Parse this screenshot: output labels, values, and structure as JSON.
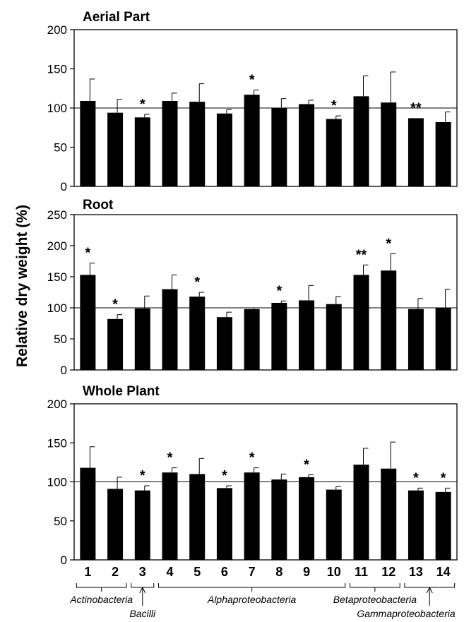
{
  "ylabel": "Relative dry weight (%)",
  "chart_data": [
    {
      "type": "bar",
      "title": "Aerial Part",
      "categories": [
        "1",
        "2",
        "3",
        "4",
        "5",
        "6",
        "7",
        "8",
        "9",
        "10",
        "11",
        "12",
        "13",
        "14"
      ],
      "values": [
        109,
        94,
        88,
        109,
        108,
        93,
        117,
        100,
        105,
        86,
        115,
        107,
        87,
        82
      ],
      "errors": [
        28,
        17,
        4,
        10,
        23,
        5,
        6,
        12,
        5,
        4,
        26,
        39,
        0,
        13
      ],
      "significance": [
        "",
        "",
        "*",
        "",
        "",
        "",
        "*",
        "",
        "",
        "*",
        "",
        "",
        "**",
        ""
      ],
      "ylim": [
        0,
        200
      ],
      "yticks": [
        "0",
        "50",
        "100",
        "150",
        "200"
      ],
      "reference_line": 100
    },
    {
      "type": "bar",
      "title": "Root",
      "categories": [
        "1",
        "2",
        "3",
        "4",
        "5",
        "6",
        "7",
        "8",
        "9",
        "10",
        "11",
        "12",
        "13",
        "14"
      ],
      "values": [
        153,
        82,
        99,
        130,
        118,
        85,
        98,
        108,
        112,
        106,
        153,
        160,
        98,
        100
      ],
      "errors": [
        19,
        7,
        20,
        23,
        7,
        8,
        2,
        3,
        24,
        12,
        16,
        27,
        17,
        30
      ],
      "significance": [
        "*",
        "*",
        "",
        "",
        "*",
        "",
        "",
        "*",
        "",
        "",
        "**",
        "*",
        "",
        ""
      ],
      "ylim": [
        0,
        250
      ],
      "yticks": [
        "0",
        "50",
        "100",
        "150",
        "200",
        "250"
      ],
      "reference_line": 100
    },
    {
      "type": "bar",
      "title": "Whole Plant",
      "categories": [
        "1",
        "2",
        "3",
        "4",
        "5",
        "6",
        "7",
        "8",
        "9",
        "10",
        "11",
        "12",
        "13",
        "14"
      ],
      "values": [
        118,
        91,
        89,
        112,
        110,
        92,
        112,
        103,
        106,
        90,
        122,
        117,
        89,
        87
      ],
      "errors": [
        27,
        15,
        6,
        6,
        20,
        3,
        6,
        7,
        3,
        4,
        21,
        34,
        3,
        5
      ],
      "significance": [
        "",
        "",
        "*",
        "*",
        "",
        "*",
        "*",
        "",
        "*",
        "",
        "",
        "",
        "*",
        "*"
      ],
      "ylim": [
        0,
        200
      ],
      "yticks": [
        "0",
        "50",
        "100",
        "150",
        "200"
      ],
      "reference_line": 100
    }
  ],
  "groups": [
    {
      "label": "Actinobacteria",
      "from": 1,
      "to": 2
    },
    {
      "label": "Bacilli",
      "from": 3,
      "to": 3
    },
    {
      "label": "Alphaproteobacteria",
      "from": 4,
      "to": 10
    },
    {
      "label": "Betaproteobacteria",
      "from": 11,
      "to": 12
    },
    {
      "label": "Gammaproteobacteria",
      "from": 13,
      "to": 14
    }
  ],
  "colors": {
    "bar": "#000000",
    "axis": "#000000"
  }
}
